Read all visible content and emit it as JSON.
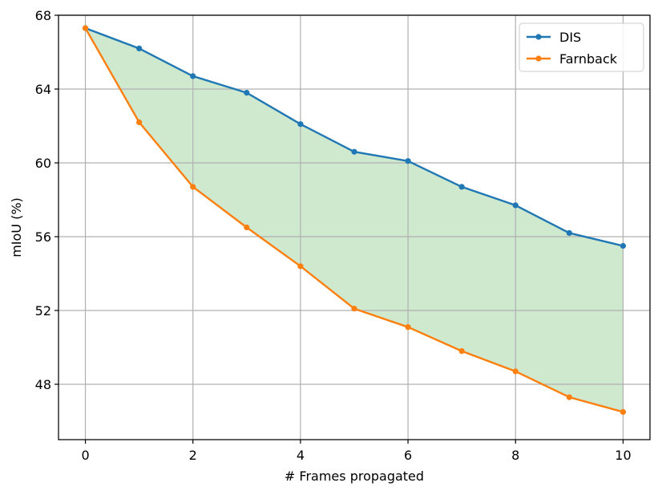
{
  "chart_data": {
    "type": "line",
    "title": "",
    "xlabel": "# Frames propagated",
    "ylabel": "mIoU (%)",
    "x": [
      0,
      1,
      2,
      3,
      4,
      5,
      6,
      7,
      8,
      9,
      10
    ],
    "xlim": [
      -0.5,
      10.5
    ],
    "ylim": [
      45,
      68
    ],
    "xticks": [
      "0",
      "2",
      "4",
      "6",
      "8",
      "10"
    ],
    "yticks": [
      "48",
      "52",
      "56",
      "60",
      "64",
      "68"
    ],
    "grid": true,
    "legend_position": "upper right",
    "fill_between": {
      "color": "#2ca02c",
      "opacity": 0.23
    },
    "series": [
      {
        "name": "DIS",
        "color": "#1f77b4",
        "values": [
          67.3,
          66.2,
          64.7,
          63.8,
          62.1,
          60.6,
          60.1,
          58.7,
          57.7,
          56.2,
          55.5
        ]
      },
      {
        "name": "Farnback",
        "color": "#ff7f0e",
        "values": [
          67.3,
          62.2,
          58.7,
          56.5,
          54.4,
          52.1,
          51.1,
          49.8,
          48.7,
          47.3,
          46.5
        ]
      }
    ]
  }
}
